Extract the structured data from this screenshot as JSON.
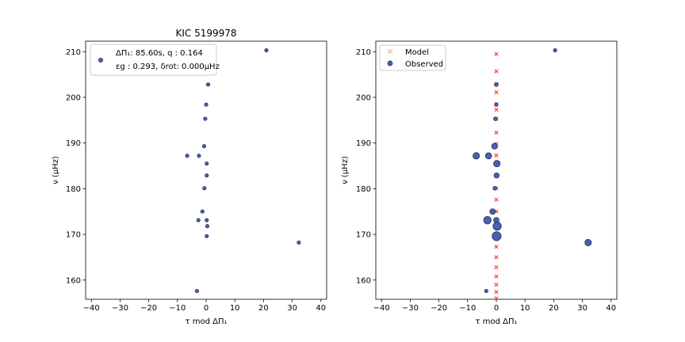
{
  "chart_data": [
    {
      "type": "scatter",
      "title": "KIC 5199978",
      "xlabel": "τ mod ΔΠ₁",
      "ylabel": "ν (μHz)",
      "xlim": [
        -42,
        42
      ],
      "ylim": [
        155.8,
        212.3
      ],
      "xticks": [
        -40,
        -30,
        -20,
        -10,
        0,
        10,
        20,
        30,
        40
      ],
      "yticks": [
        160,
        170,
        180,
        190,
        200,
        210
      ],
      "legend_position": "top-left",
      "legend_lines": [
        "ΔΠ₁: 85.60s, q :  0.164",
        "εg : 0.293, δrot: 0.000μHz"
      ],
      "series": [
        {
          "color": "#4a5fb0",
          "marker": "circle",
          "points": [
            {
              "x": 21.0,
              "y": 210.3
            },
            {
              "x": 0.7,
              "y": 202.8
            },
            {
              "x": 0.0,
              "y": 198.4
            },
            {
              "x": -0.3,
              "y": 195.3
            },
            {
              "x": -0.7,
              "y": 189.3
            },
            {
              "x": -6.6,
              "y": 187.2
            },
            {
              "x": -2.5,
              "y": 187.2
            },
            {
              "x": 0.2,
              "y": 185.5
            },
            {
              "x": 0.2,
              "y": 182.9
            },
            {
              "x": -0.6,
              "y": 180.1
            },
            {
              "x": -1.3,
              "y": 175.0
            },
            {
              "x": -2.7,
              "y": 173.1
            },
            {
              "x": 0.2,
              "y": 173.1
            },
            {
              "x": 0.4,
              "y": 171.8
            },
            {
              "x": 0.2,
              "y": 169.6
            },
            {
              "x": 32.3,
              "y": 168.2
            },
            {
              "x": -3.2,
              "y": 157.6
            }
          ]
        }
      ]
    },
    {
      "type": "scatter",
      "title": "",
      "xlabel": "τ mod ΔΠ₁",
      "ylabel": "ν (μHz)",
      "xlim": [
        -42,
        42
      ],
      "ylim": [
        155.8,
        212.3
      ],
      "xticks": [
        -40,
        -30,
        -20,
        -10,
        0,
        10,
        20,
        30,
        40
      ],
      "yticks": [
        160,
        170,
        180,
        190,
        200,
        210
      ],
      "legend_position": "top-left",
      "series": [
        {
          "name": "Model",
          "color": "#ff3b3b",
          "marker": "x",
          "points": [
            {
              "x": 0.0,
              "y": 209.5
            },
            {
              "x": 0.0,
              "y": 205.7
            },
            {
              "x": 0.0,
              "y": 202.9
            },
            {
              "x": 0.0,
              "y": 201.1
            },
            {
              "x": 0.0,
              "y": 198.5
            },
            {
              "x": 0.0,
              "y": 197.3
            },
            {
              "x": 0.0,
              "y": 195.3
            },
            {
              "x": 0.0,
              "y": 192.3
            },
            {
              "x": 0.0,
              "y": 189.8
            },
            {
              "x": 0.0,
              "y": 187.3
            },
            {
              "x": 0.0,
              "y": 185.6
            },
            {
              "x": 0.0,
              "y": 182.9
            },
            {
              "x": 0.0,
              "y": 180.1
            },
            {
              "x": 0.0,
              "y": 177.6
            },
            {
              "x": 0.0,
              "y": 175.0
            },
            {
              "x": 0.0,
              "y": 173.1
            },
            {
              "x": 0.0,
              "y": 171.8
            },
            {
              "x": 0.0,
              "y": 169.6
            },
            {
              "x": 0.0,
              "y": 167.3
            },
            {
              "x": 0.0,
              "y": 165.0
            },
            {
              "x": 0.0,
              "y": 162.8
            },
            {
              "x": 0.0,
              "y": 160.8
            },
            {
              "x": 0.0,
              "y": 159.0
            },
            {
              "x": 0.0,
              "y": 157.4
            },
            {
              "x": 0.0,
              "y": 156.0
            }
          ]
        },
        {
          "name": "Observed",
          "color": "#4a5fb0",
          "marker": "circle",
          "points": [
            {
              "x": 20.5,
              "y": 210.3,
              "size": 1.0
            },
            {
              "x": 0.0,
              "y": 202.8,
              "size": 1.1
            },
            {
              "x": 0.0,
              "y": 198.4,
              "size": 1.0
            },
            {
              "x": -0.3,
              "y": 195.3,
              "size": 1.1
            },
            {
              "x": -0.6,
              "y": 189.3,
              "size": 1.7
            },
            {
              "x": -7.0,
              "y": 187.2,
              "size": 1.9
            },
            {
              "x": -2.7,
              "y": 187.2,
              "size": 1.8
            },
            {
              "x": 0.2,
              "y": 185.5,
              "size": 1.9
            },
            {
              "x": 0.1,
              "y": 182.9,
              "size": 1.5
            },
            {
              "x": -0.5,
              "y": 180.1,
              "size": 1.1
            },
            {
              "x": -1.3,
              "y": 175.0,
              "size": 1.6
            },
            {
              "x": -3.1,
              "y": 173.1,
              "size": 2.2
            },
            {
              "x": 0.0,
              "y": 173.1,
              "size": 1.6
            },
            {
              "x": 0.3,
              "y": 171.8,
              "size": 2.4
            },
            {
              "x": 0.1,
              "y": 169.6,
              "size": 2.6
            },
            {
              "x": 32.0,
              "y": 168.2,
              "size": 1.9
            },
            {
              "x": -3.5,
              "y": 157.6,
              "size": 1.0
            }
          ]
        }
      ]
    }
  ]
}
